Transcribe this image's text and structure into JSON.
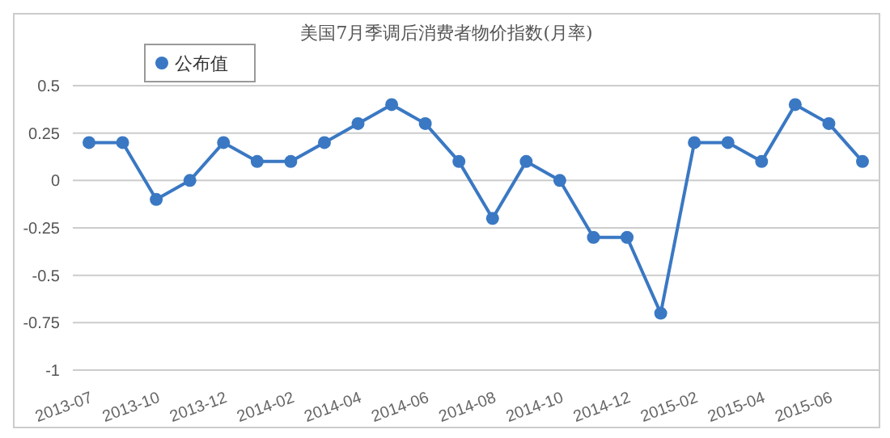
{
  "chart_data": {
    "type": "line",
    "title": "美国7月季调后消费者物价指数(月率)",
    "categories": [
      "2013-07",
      null,
      "2013-10",
      null,
      "2013-12",
      null,
      "2014-02",
      null,
      "2014-04",
      null,
      "2014-06",
      null,
      "2014-08",
      null,
      "2014-10",
      null,
      "2014-12",
      null,
      "2015-02",
      null,
      "2015-04",
      null,
      "2015-06",
      null
    ],
    "series": [
      {
        "name": "公布值",
        "color": "#3a78c3",
        "values": [
          0.2,
          0.2,
          -0.1,
          0,
          0.2,
          0.1,
          0.1,
          0.2,
          0.3,
          0.4,
          0.3,
          0.1,
          -0.2,
          0.1,
          0,
          -0.3,
          -0.3,
          -0.7,
          0.2,
          0.2,
          0.1,
          0.4,
          0.3,
          0.1
        ]
      }
    ],
    "ylim": [
      -1,
      0.5
    ],
    "yticks": [
      -1,
      -0.75,
      -0.5,
      -0.25,
      0,
      0.25,
      0.5
    ],
    "grid": "y",
    "legend": "top left",
    "marker": "circle",
    "line_style": "solid"
  }
}
